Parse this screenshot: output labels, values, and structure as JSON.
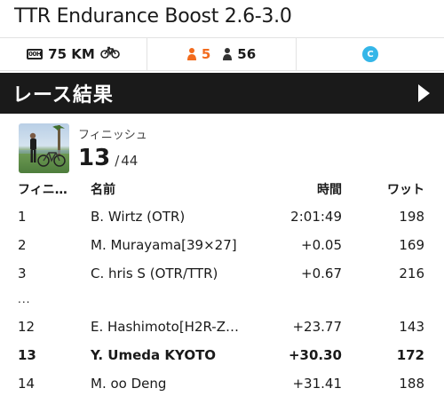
{
  "event": {
    "title": "TTR Endurance Boost 2.6-3.0"
  },
  "stats": {
    "distance_icon": "distance-icon",
    "distance_icon_text": "00H",
    "distance": "75 KM",
    "bike_icon": "bicycle-icon",
    "orange_count": "5",
    "gray_count": "56",
    "category": "C",
    "colors": {
      "orange": "#f26b1d",
      "category_badge": "#35b6e8"
    }
  },
  "section": {
    "title": "レース結果",
    "arrow_icon": "play-arrow-icon"
  },
  "my_result": {
    "label": "フィニッシュ",
    "rank": "13",
    "separator": "/",
    "total": "44"
  },
  "table": {
    "headers": {
      "position": "フィニッシュ",
      "name": "名前",
      "time": "時間",
      "watts": "ワット"
    },
    "rows": [
      {
        "position": "1",
        "name": "B. Wirtz (OTR)",
        "time": "2:01:49",
        "watts": "198"
      },
      {
        "position": "2",
        "name": "M. Murayama[39×27]",
        "time": "+0.05",
        "watts": "169"
      },
      {
        "position": "3",
        "name": "C. hris S (OTR/TTR)",
        "time": "+0.67",
        "watts": "216"
      },
      {
        "position": "12",
        "name": "E. Hashimoto[H2R-Z…",
        "time": "+23.77",
        "watts": "143"
      },
      {
        "position": "13",
        "name": "Y. Umeda KYOTO",
        "time": "+30.30",
        "watts": "172"
      },
      {
        "position": "14",
        "name": "M. oo Deng",
        "time": "+31.41",
        "watts": "188"
      }
    ],
    "gap_marker": "..."
  }
}
